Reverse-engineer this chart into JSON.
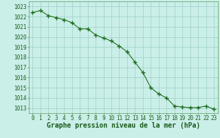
{
  "x": [
    0,
    1,
    2,
    3,
    4,
    5,
    6,
    7,
    8,
    9,
    10,
    11,
    12,
    13,
    14,
    15,
    16,
    17,
    18,
    19,
    20,
    21,
    22,
    23
  ],
  "y": [
    1022.4,
    1022.6,
    1022.1,
    1021.9,
    1021.7,
    1021.4,
    1020.8,
    1020.8,
    1020.2,
    1019.9,
    1019.6,
    1019.1,
    1018.55,
    1017.5,
    1016.5,
    1015.0,
    1014.4,
    1014.0,
    1013.2,
    1013.1,
    1013.05,
    1013.05,
    1013.2,
    1012.9
  ],
  "line_color": "#1a6b1a",
  "marker": "+",
  "marker_size": 4,
  "marker_linewidth": 1.0,
  "line_width": 0.8,
  "background_color": "#caeee8",
  "grid_color": "#90c8c0",
  "xlabel": "Graphe pression niveau de la mer (hPa)",
  "xlabel_fontsize": 7,
  "xlabel_color": "#1a5c1a",
  "ytick_labels": [
    1013,
    1014,
    1015,
    1016,
    1017,
    1018,
    1019,
    1020,
    1021,
    1022,
    1023
  ],
  "ylim": [
    1012.5,
    1023.5
  ],
  "xlim": [
    -0.5,
    23.5
  ],
  "xtick_labels": [
    "0",
    "1",
    "2",
    "3",
    "4",
    "5",
    "6",
    "7",
    "8",
    "9",
    "10",
    "11",
    "12",
    "13",
    "14",
    "15",
    "16",
    "17",
    "18",
    "19",
    "20",
    "21",
    "22",
    "23"
  ],
  "tick_color": "#1a5c1a",
  "tick_fontsize": 5.5,
  "spine_color": "#5a9a5a"
}
